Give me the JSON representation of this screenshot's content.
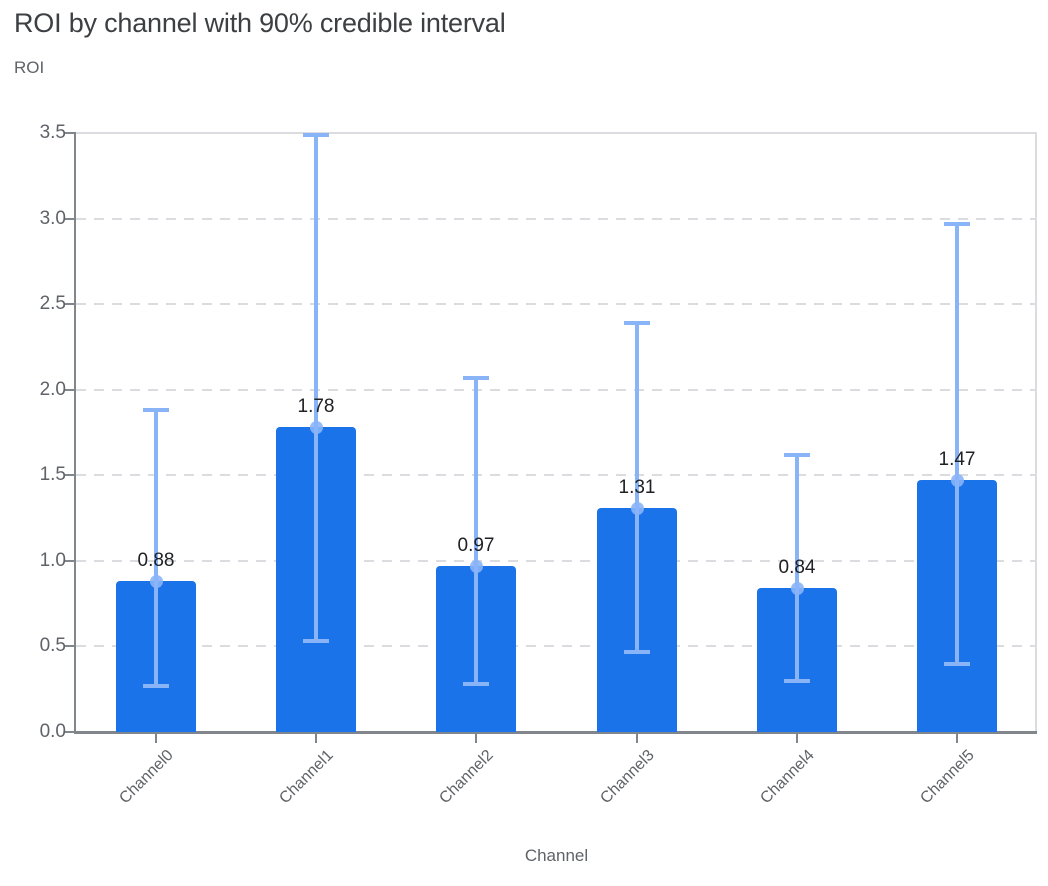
{
  "title": "ROI by channel with 90% credible interval",
  "y_axis_title": "ROI",
  "x_axis_title": "Channel",
  "colors": {
    "bar": "#1a73e8",
    "error": "#8ab4f8",
    "error_dot": "rgba(138,180,248,0.9)",
    "grid": "#dadce0",
    "axis": "#80868b",
    "title_text": "#3c4043",
    "muted_text": "#5f6368",
    "value_text": "#202124"
  },
  "chart_data": {
    "type": "bar",
    "title": "ROI by channel with 90% credible interval",
    "xlabel": "Channel",
    "ylabel": "ROI",
    "categories": [
      "Channel0",
      "Channel1",
      "Channel2",
      "Channel3",
      "Channel4",
      "Channel5"
    ],
    "values": [
      0.88,
      1.78,
      0.97,
      1.31,
      0.84,
      1.47
    ],
    "value_labels": [
      "0.88",
      "1.78",
      "0.97",
      "1.31",
      "0.84",
      "1.47"
    ],
    "error_low": [
      0.27,
      0.53,
      0.28,
      0.47,
      0.3,
      0.4
    ],
    "error_high": [
      1.88,
      3.49,
      2.07,
      2.39,
      1.62,
      2.97
    ],
    "ylim": [
      0,
      3.5
    ],
    "yticks": [
      0,
      0.5,
      1,
      1.5,
      2,
      2.5,
      3,
      3.5
    ],
    "ytick_labels": [
      "0.0",
      "0.5",
      "1.0",
      "1.5",
      "2.0",
      "2.5",
      "3.0",
      "3.5"
    ],
    "grid": "horizontal-dashed",
    "legend": "none"
  }
}
